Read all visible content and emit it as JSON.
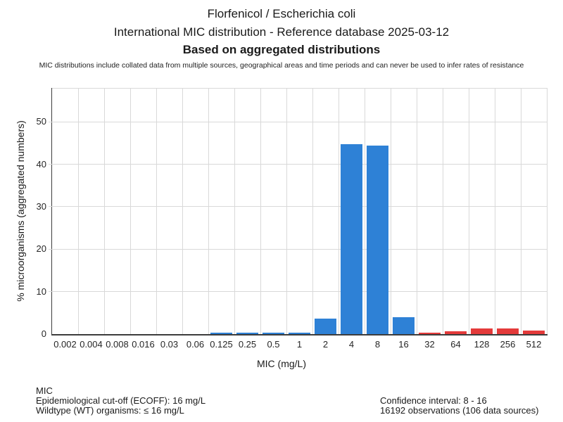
{
  "header": {
    "title": "Florfenicol / Escherichia coli",
    "subtitle": "International MIC distribution - Reference database 2025-03-12",
    "emphasis": "Based on aggregated distributions",
    "disclaimer": "MIC distributions include collated data from multiple sources, geographical areas and time periods and can never be used to infer rates of resistance"
  },
  "chart_data": {
    "type": "bar",
    "title": "Florfenicol / Escherichia coli - International MIC distribution - Reference database 2025-03-12",
    "xlabel": "MIC (mg/L)",
    "ylabel": "% microorganisms (aggregated numbers)",
    "categories": [
      "0.002",
      "0.004",
      "0.008",
      "0.016",
      "0.03",
      "0.06",
      "0.125",
      "0.25",
      "0.5",
      "1",
      "2",
      "4",
      "8",
      "16",
      "32",
      "64",
      "128",
      "256",
      "512"
    ],
    "values": [
      0,
      0,
      0,
      0,
      0,
      0,
      0.3,
      0.3,
      0.3,
      0.3,
      3.6,
      44.7,
      44.4,
      4.0,
      0.4,
      0.6,
      1.4,
      1.3,
      0.8
    ],
    "groups": [
      "wildtype",
      "wildtype",
      "wildtype",
      "wildtype",
      "wildtype",
      "wildtype",
      "wildtype",
      "wildtype",
      "wildtype",
      "wildtype",
      "wildtype",
      "wildtype",
      "wildtype",
      "wildtype",
      "non_wildtype",
      "non_wildtype",
      "non_wildtype",
      "non_wildtype",
      "non_wildtype"
    ],
    "colors": {
      "wildtype": "#2e81d6",
      "non_wildtype": "#e43a3a",
      "grid": "#d9d9d9",
      "axis": "#3c3c3c"
    },
    "yticks": [
      0,
      10,
      20,
      30,
      40,
      50
    ],
    "ylim": [
      0,
      58
    ],
    "grid": true,
    "legend_position": "none",
    "bar_width_fraction": 0.84
  },
  "footer": {
    "left_lines": [
      "MIC",
      "Epidemiological cut-off (ECOFF): 16 mg/L",
      "Wildtype (WT) organisms: ≤ 16 mg/L"
    ],
    "right_lines": [
      "Confidence interval: 8 - 16",
      "16192 observations (106 data sources)"
    ]
  }
}
